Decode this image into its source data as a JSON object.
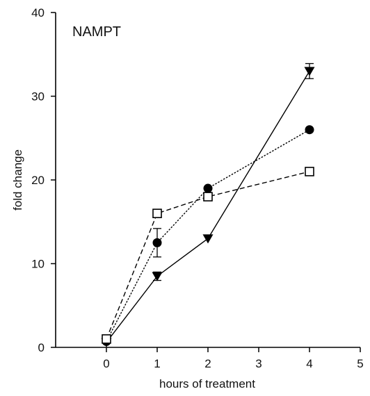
{
  "chart_data": {
    "type": "line",
    "title": "NAMPT",
    "xlabel": "hours of treatment",
    "ylabel": "fold change",
    "xlim": [
      -1,
      5
    ],
    "ylim": [
      0,
      40
    ],
    "xticks": [
      0,
      1,
      2,
      3,
      4,
      5
    ],
    "yticks": [
      0,
      10,
      20,
      30,
      40
    ],
    "grid": false,
    "series": [
      {
        "marker": "triangle-down",
        "line_style": "solid",
        "color": "#000000",
        "x": [
          0,
          1,
          2,
          4
        ],
        "y": [
          0.6,
          8.5,
          13,
          33
        ],
        "error": [
          0,
          0.5,
          0,
          0.9
        ]
      },
      {
        "marker": "circle",
        "line_style": "dotted",
        "color": "#000000",
        "x": [
          0,
          1,
          2,
          4
        ],
        "y": [
          0.7,
          12.5,
          19,
          26
        ],
        "error": [
          0,
          1.7,
          0,
          0
        ]
      },
      {
        "marker": "open-square",
        "line_style": "dashed",
        "color": "#000000",
        "x": [
          0,
          1,
          2,
          4
        ],
        "y": [
          1,
          16,
          18,
          21
        ],
        "error": [
          0,
          0,
          0,
          0
        ]
      }
    ]
  }
}
